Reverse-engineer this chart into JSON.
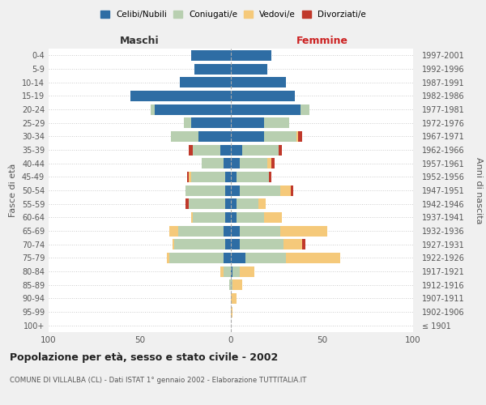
{
  "age_groups": [
    "100+",
    "95-99",
    "90-94",
    "85-89",
    "80-84",
    "75-79",
    "70-74",
    "65-69",
    "60-64",
    "55-59",
    "50-54",
    "45-49",
    "40-44",
    "35-39",
    "30-34",
    "25-29",
    "20-24",
    "15-19",
    "10-14",
    "5-9",
    "0-4"
  ],
  "birth_years": [
    "≤ 1901",
    "1902-1906",
    "1907-1911",
    "1912-1916",
    "1917-1921",
    "1922-1926",
    "1927-1931",
    "1932-1936",
    "1937-1941",
    "1942-1946",
    "1947-1951",
    "1952-1956",
    "1957-1961",
    "1962-1966",
    "1967-1971",
    "1972-1976",
    "1977-1981",
    "1982-1986",
    "1987-1991",
    "1992-1996",
    "1997-2001"
  ],
  "male": {
    "celibi": [
      0,
      0,
      0,
      0,
      0,
      4,
      3,
      4,
      3,
      3,
      3,
      3,
      4,
      6,
      18,
      22,
      42,
      55,
      28,
      20,
      22
    ],
    "coniugati": [
      0,
      0,
      0,
      1,
      4,
      30,
      28,
      25,
      18,
      20,
      22,
      19,
      12,
      15,
      15,
      4,
      2,
      0,
      0,
      0,
      0
    ],
    "vedovi": [
      0,
      0,
      0,
      0,
      2,
      1,
      1,
      5,
      1,
      0,
      0,
      1,
      0,
      0,
      0,
      0,
      0,
      0,
      0,
      0,
      0
    ],
    "divorziati": [
      0,
      0,
      0,
      0,
      0,
      0,
      0,
      0,
      0,
      2,
      0,
      1,
      0,
      2,
      0,
      0,
      0,
      0,
      0,
      0,
      0
    ]
  },
  "female": {
    "nubili": [
      0,
      0,
      0,
      0,
      1,
      8,
      5,
      5,
      3,
      3,
      5,
      3,
      5,
      6,
      18,
      18,
      38,
      35,
      30,
      20,
      22
    ],
    "coniugate": [
      0,
      0,
      0,
      1,
      4,
      22,
      24,
      22,
      15,
      12,
      22,
      18,
      15,
      20,
      18,
      14,
      5,
      0,
      0,
      0,
      0
    ],
    "vedove": [
      0,
      1,
      3,
      5,
      8,
      30,
      10,
      26,
      10,
      4,
      6,
      0,
      2,
      0,
      1,
      0,
      0,
      0,
      0,
      0,
      0
    ],
    "divorziate": [
      0,
      0,
      0,
      0,
      0,
      0,
      2,
      0,
      0,
      0,
      1,
      1,
      2,
      2,
      2,
      0,
      0,
      0,
      0,
      0,
      0
    ]
  },
  "colors": {
    "celibi": "#2E6DA4",
    "coniugati": "#B8CFB0",
    "vedovi": "#F5C97A",
    "divorziati": "#C0392B"
  },
  "xlim": 100,
  "title": "Popolazione per età, sesso e stato civile - 2002",
  "subtitle": "COMUNE DI VILLALBA (CL) - Dati ISTAT 1° gennaio 2002 - Elaborazione TUTTITALIA.IT",
  "xlabel_left": "Maschi",
  "xlabel_right": "Femmine",
  "ylabel_left": "Fasce di età",
  "ylabel_right": "Anni di nascita",
  "legend_labels": [
    "Celibi/Nubili",
    "Coniugati/e",
    "Vedovi/e",
    "Divorziati/e"
  ],
  "bg_color": "#f0f0f0",
  "plot_bg_color": "#ffffff"
}
